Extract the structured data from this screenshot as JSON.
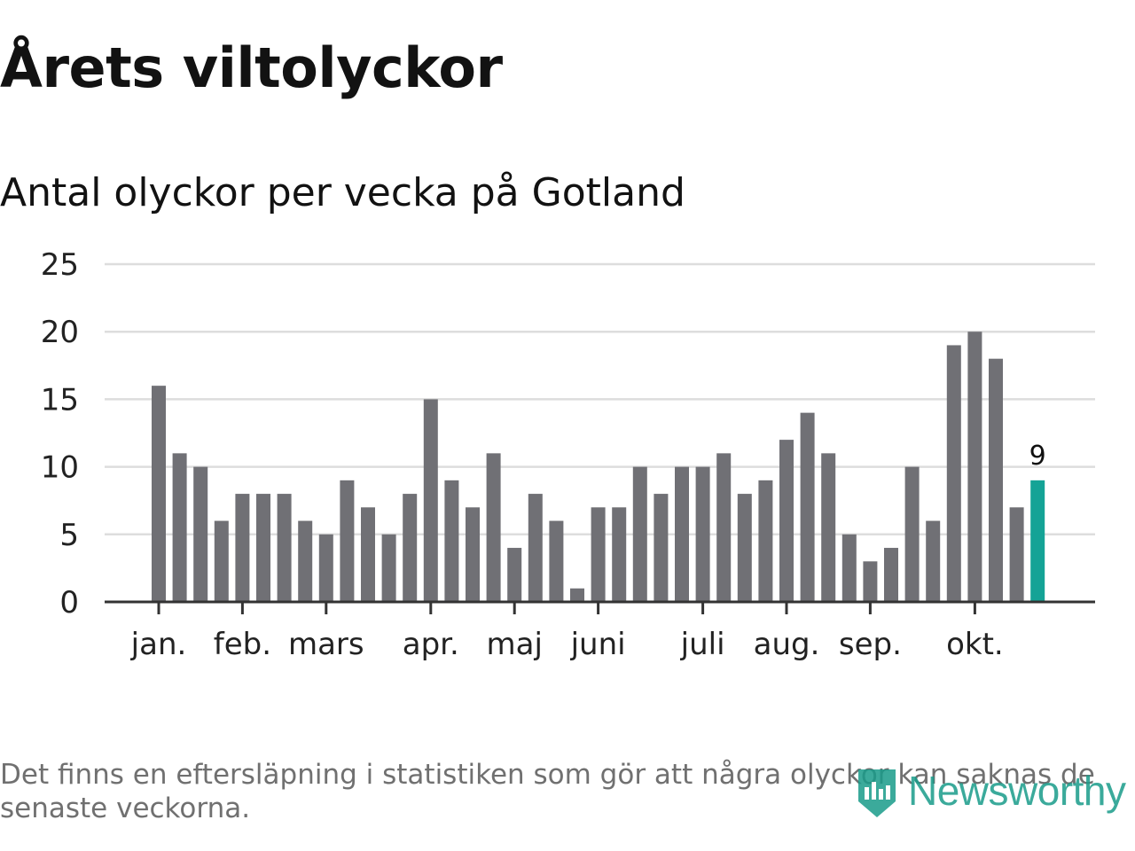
{
  "title": "Årets viltolyckor",
  "subtitle": "Antal olyckor per vecka på Gotland",
  "footnote": "Det finns en eftersläpning i statistiken som gör att några olyckor kan saknas de senaste veckorna.",
  "logo": {
    "text": "Newsworthy",
    "icon": "newsworthy-logo-icon"
  },
  "colors": {
    "bar": "#707075",
    "highlight": "#14a396",
    "grid": "#dddddd",
    "axis": "#333333",
    "text": "#222222"
  },
  "chart_data": {
    "type": "bar",
    "title": "Antal olyckor per vecka på Gotland",
    "xlabel": "",
    "ylabel": "",
    "ylim": [
      0,
      25
    ],
    "yticks": [
      0,
      5,
      10,
      15,
      20,
      25
    ],
    "grid": true,
    "values": [
      16,
      11,
      10,
      6,
      8,
      8,
      8,
      6,
      5,
      9,
      7,
      5,
      8,
      15,
      9,
      7,
      11,
      4,
      8,
      6,
      1,
      7,
      7,
      10,
      8,
      10,
      10,
      11,
      8,
      9,
      12,
      14,
      11,
      5,
      3,
      4,
      10,
      6,
      19,
      20,
      18,
      7,
      9
    ],
    "highlight_index": 42,
    "highlight_label": "9",
    "month_labels": [
      {
        "label": "jan.",
        "bar_index": 0
      },
      {
        "label": "feb.",
        "bar_index": 4
      },
      {
        "label": "mars",
        "bar_index": 8
      },
      {
        "label": "apr.",
        "bar_index": 13
      },
      {
        "label": "maj",
        "bar_index": 17
      },
      {
        "label": "juni",
        "bar_index": 21
      },
      {
        "label": "juli",
        "bar_index": 26
      },
      {
        "label": "aug.",
        "bar_index": 30
      },
      {
        "label": "sep.",
        "bar_index": 34
      },
      {
        "label": "okt.",
        "bar_index": 39
      }
    ]
  }
}
